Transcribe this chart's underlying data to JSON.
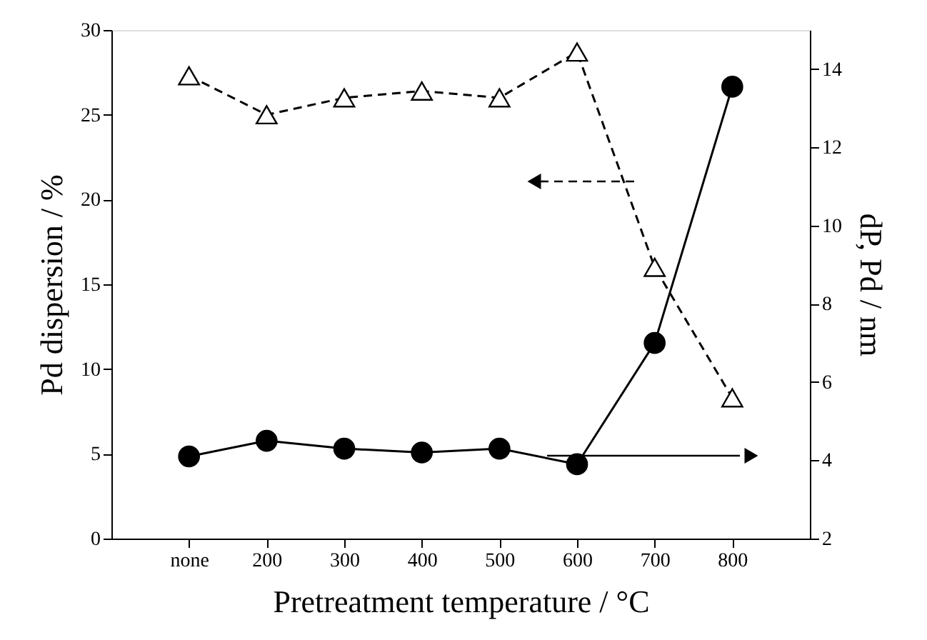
{
  "chart_data": {
    "type": "line",
    "xlabel": "Pretreatment temperature / °C",
    "ylabel": "Pd dispersion / %",
    "y2label": "dP, Pd / nm",
    "categories": [
      "none",
      "200",
      "300",
      "400",
      "500",
      "600",
      "700",
      "800"
    ],
    "series": [
      {
        "color": "#000000",
        "marker": "triangle",
        "line_style": "dashed",
        "values": [
          27.3,
          25.0,
          26.0,
          26.4,
          26.0,
          28.7,
          16.0,
          8.3
        ]
      },
      {
        "color": "#000000",
        "marker": "circle",
        "line_style": "solid",
        "axis": "y2",
        "values": [
          4.1,
          4.5,
          4.3,
          4.2,
          4.3,
          3.9,
          7.0,
          13.55
        ]
      }
    ],
    "ylim": [
      0,
      30
    ],
    "yticks": [
      0,
      5,
      10,
      15,
      20,
      25,
      30
    ],
    "y2lim": [
      2,
      15
    ],
    "y2ticks": [
      2,
      4,
      6,
      8,
      10,
      12,
      14
    ],
    "grid": false,
    "legend": false
  }
}
